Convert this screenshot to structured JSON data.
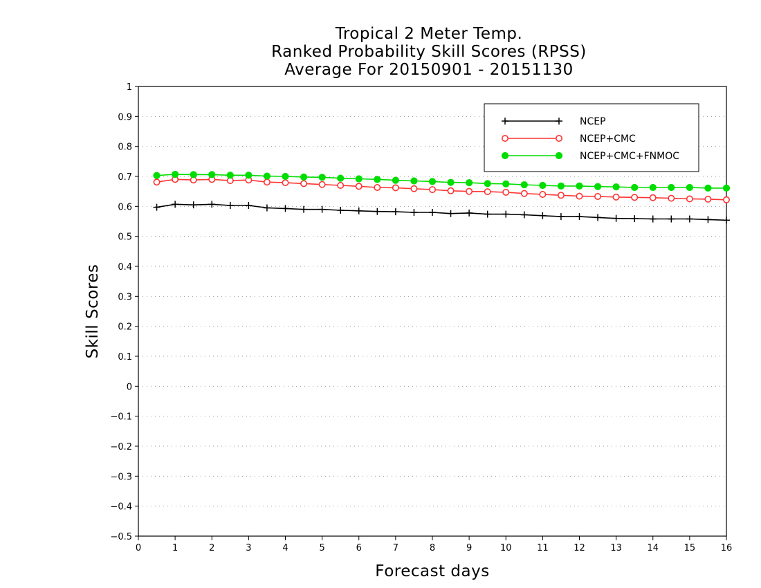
{
  "chart_data": {
    "type": "line",
    "title": [
      "Tropical 2 Meter Temp.",
      "Ranked Probability Skill Scores (RPSS)",
      "Average For 20150901 - 20151130"
    ],
    "xlabel": "Forecast days",
    "ylabel": "Skill Scores",
    "xlim": [
      0,
      16
    ],
    "ylim": [
      -0.5,
      1
    ],
    "xticks": [
      "0",
      "1",
      "2",
      "3",
      "4",
      "5",
      "6",
      "7",
      "8",
      "9",
      "10",
      "11",
      "12",
      "13",
      "14",
      "15",
      "16"
    ],
    "yticks": [
      "−0.5",
      "−0.4",
      "−0.3",
      "−0.2",
      "−0.1",
      "0",
      "0.1",
      "0.2",
      "0.3",
      "0.4",
      "0.5",
      "0.6",
      "0.7",
      "0.8",
      "0.9",
      "1"
    ],
    "grid": "horizontal dotted",
    "legend_position": "top-right",
    "x": [
      0.5,
      1,
      1.5,
      2,
      2.5,
      3,
      3.5,
      4,
      4.5,
      5,
      5.5,
      6,
      6.5,
      7,
      7.5,
      8,
      8.5,
      9,
      9.5,
      10,
      10.5,
      11,
      11.5,
      12,
      12.5,
      13,
      13.5,
      14,
      14.5,
      15,
      15.5,
      16
    ],
    "series": [
      {
        "name": "NCEP",
        "color": "#000000",
        "marker": "plus",
        "values": [
          0.597,
          0.607,
          0.605,
          0.607,
          0.603,
          0.603,
          0.595,
          0.593,
          0.59,
          0.59,
          0.587,
          0.585,
          0.583,
          0.582,
          0.58,
          0.58,
          0.576,
          0.578,
          0.574,
          0.574,
          0.572,
          0.569,
          0.566,
          0.566,
          0.563,
          0.56,
          0.559,
          0.558,
          0.558,
          0.558,
          0.556,
          0.554
        ]
      },
      {
        "name": "NCEP+CMC",
        "color": "#ff3333",
        "marker": "open-circle",
        "values": [
          0.681,
          0.69,
          0.688,
          0.69,
          0.686,
          0.688,
          0.681,
          0.679,
          0.676,
          0.673,
          0.67,
          0.667,
          0.663,
          0.662,
          0.659,
          0.656,
          0.652,
          0.65,
          0.649,
          0.647,
          0.643,
          0.64,
          0.637,
          0.634,
          0.633,
          0.631,
          0.63,
          0.629,
          0.627,
          0.625,
          0.624,
          0.622
        ]
      },
      {
        "name": "NCEP+CMC+FNMOC",
        "color": "#00dd00",
        "marker": "filled-circle",
        "values": [
          0.703,
          0.707,
          0.706,
          0.706,
          0.704,
          0.704,
          0.701,
          0.7,
          0.698,
          0.697,
          0.694,
          0.692,
          0.69,
          0.687,
          0.685,
          0.683,
          0.68,
          0.679,
          0.676,
          0.675,
          0.672,
          0.67,
          0.668,
          0.668,
          0.666,
          0.665,
          0.663,
          0.663,
          0.663,
          0.663,
          0.661,
          0.661
        ]
      }
    ]
  }
}
